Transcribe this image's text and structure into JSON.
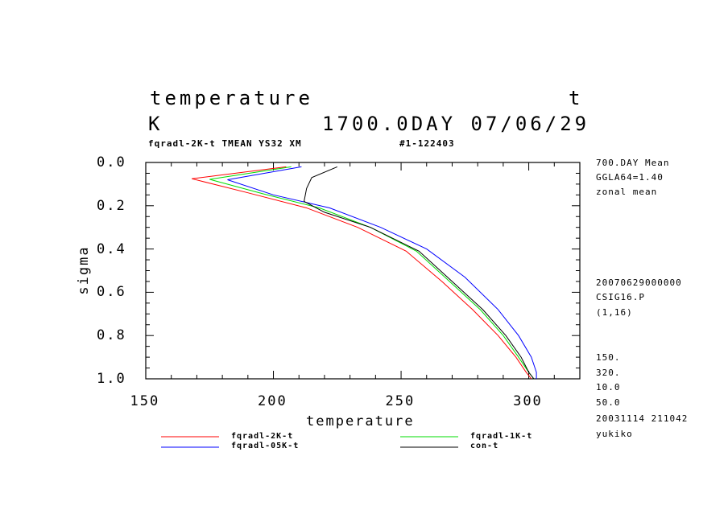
{
  "header": {
    "title_left": "temperature",
    "title_right": "t",
    "unit": "K",
    "date": "1700.0DAY 07/06/29",
    "subtitle_left": "fqradl-2K-t TMEAN YS32 XM",
    "subtitle_right": "#1-122403"
  },
  "side_info": {
    "top": [
      "700.DAY Mean",
      "GGLA64=1.40",
      "zonal mean"
    ],
    "middle": [
      "20070629000000",
      "CSIG16.P",
      "(1,16)"
    ],
    "bottom": [
      "150.",
      "320.",
      "10.0",
      "50.0",
      "20031114 211042",
      "yukiko"
    ]
  },
  "chart_data": {
    "type": "line",
    "xlabel": "temperature",
    "ylabel": "sigma",
    "xlim": [
      150,
      320
    ],
    "ylim": [
      1.0,
      0.0
    ],
    "x_ticks": [
      "150",
      "200",
      "250",
      "300"
    ],
    "y_ticks": [
      "0.0",
      "0.2",
      "0.4",
      "0.6",
      "0.8",
      "1.0"
    ],
    "grid": false,
    "legend_position": "bottom",
    "series": [
      {
        "name": "fqradl-2K-t",
        "color": "#ff0000",
        "points": [
          [
            205,
            0.02
          ],
          [
            168,
            0.075
          ],
          [
            190,
            0.14
          ],
          [
            213,
            0.21
          ],
          [
            233,
            0.3
          ],
          [
            252,
            0.41
          ],
          [
            266,
            0.55
          ],
          [
            278,
            0.68
          ],
          [
            288,
            0.8
          ],
          [
            295,
            0.9
          ],
          [
            299,
            0.97
          ],
          [
            301,
            1.0
          ]
        ]
      },
      {
        "name": "fqradl-1K-t",
        "color": "#00dd00",
        "points": [
          [
            207,
            0.02
          ],
          [
            175,
            0.078
          ],
          [
            196,
            0.145
          ],
          [
            218,
            0.21
          ],
          [
            238,
            0.3
          ],
          [
            256,
            0.41
          ],
          [
            269,
            0.55
          ],
          [
            281,
            0.68
          ],
          [
            290,
            0.8
          ],
          [
            296,
            0.9
          ],
          [
            300,
            0.97
          ],
          [
            302,
            1.0
          ]
        ]
      },
      {
        "name": "fqradl-05K-t",
        "color": "#0000ff",
        "points": [
          [
            211,
            0.02
          ],
          [
            182,
            0.08
          ],
          [
            200,
            0.15
          ],
          [
            222,
            0.21
          ],
          [
            242,
            0.3
          ],
          [
            260,
            0.4
          ],
          [
            275,
            0.53
          ],
          [
            288,
            0.68
          ],
          [
            296,
            0.8
          ],
          [
            301,
            0.9
          ],
          [
            303,
            0.97
          ],
          [
            303,
            1.0
          ]
        ]
      },
      {
        "name": "con-t",
        "color": "#000000",
        "points": [
          [
            225,
            0.02
          ],
          [
            215,
            0.07
          ],
          [
            213,
            0.12
          ],
          [
            212,
            0.18
          ],
          [
            220,
            0.23
          ],
          [
            238,
            0.3
          ],
          [
            257,
            0.41
          ],
          [
            270,
            0.55
          ],
          [
            282,
            0.68
          ],
          [
            291,
            0.8
          ],
          [
            297,
            0.9
          ],
          [
            300,
            0.97
          ],
          [
            302,
            1.0
          ]
        ]
      }
    ]
  }
}
